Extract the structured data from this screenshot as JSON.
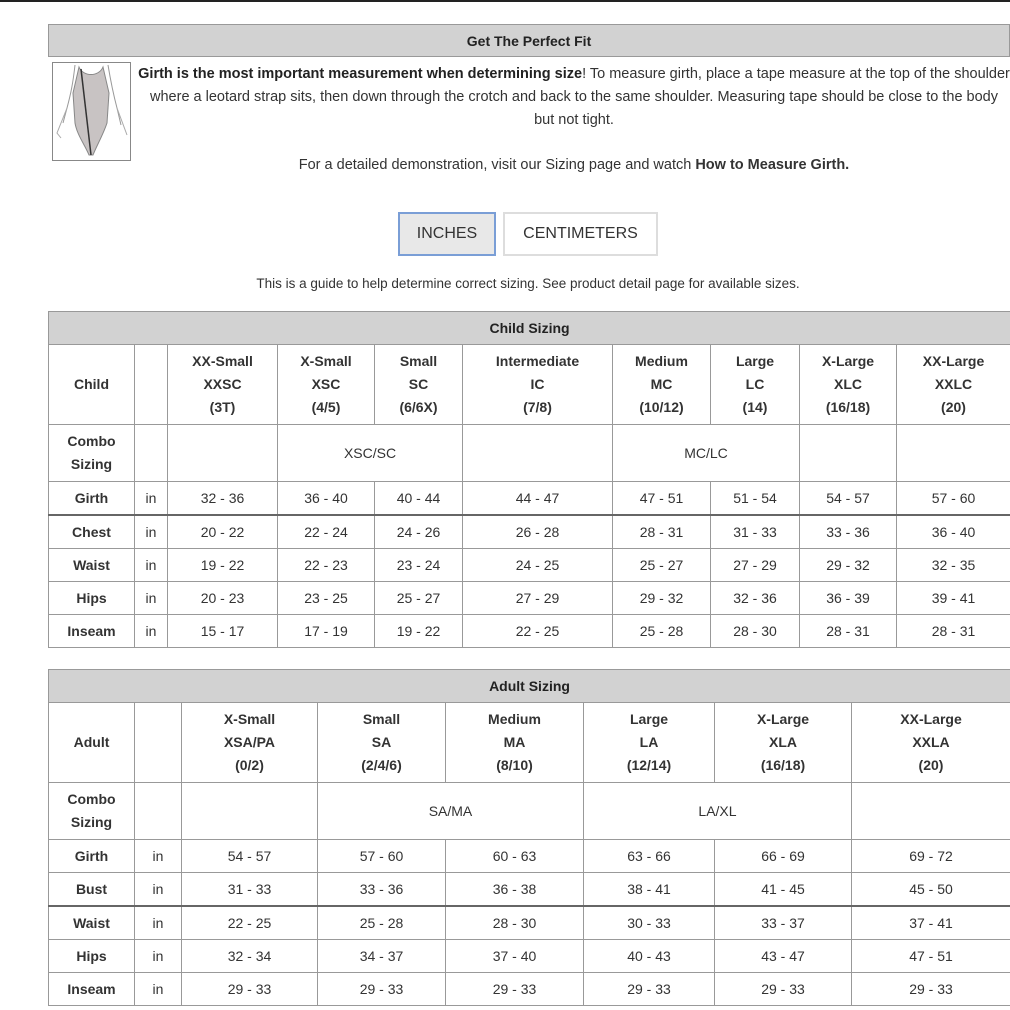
{
  "fit": {
    "title": "Get The Perfect Fit",
    "intro_bold": "Girth is the most important measurement when determining size",
    "intro_rest": "! To measure girth, place a tape measure at the top of the shoulder where a leotard strap sits, then down through the crotch and back to the same shoulder. Measuring tape should be close to the body but not tight.",
    "demo_text": "For a detailed demonstration, visit our Sizing page and watch ",
    "demo_link": "How to Measure Girth."
  },
  "units": {
    "inches": "INCHES",
    "centimeters": "CENTIMETERS",
    "selected": "INCHES"
  },
  "guide_text": "This is a guide to help determine correct sizing. See product detail page for available sizes.",
  "child": {
    "title": "Child Sizing",
    "corner": "Child",
    "columns": [
      [
        "XX-Small",
        "XXSC",
        "(3T)"
      ],
      [
        "X-Small",
        "XSC",
        "(4/5)"
      ],
      [
        "Small",
        "SC",
        "(6/6X)"
      ],
      [
        "Intermediate",
        "IC",
        "(7/8)"
      ],
      [
        "Medium",
        "MC",
        "(10/12)"
      ],
      [
        "Large",
        "LC",
        "(14)"
      ],
      [
        "X-Large",
        "XLC",
        "(16/18)"
      ],
      [
        "XX-Large",
        "XXLC",
        "(20)"
      ]
    ],
    "combo_label": [
      "Combo",
      "Sizing"
    ],
    "combo": [
      {
        "text": "",
        "span": 1
      },
      {
        "text": "XSC/SC",
        "span": 2
      },
      {
        "text": "",
        "span": 1
      },
      {
        "text": "MC/LC",
        "span": 2
      },
      {
        "text": "",
        "span": 1
      },
      {
        "text": "",
        "span": 1
      }
    ],
    "rows": [
      {
        "label": "Girth",
        "unit": "in",
        "values": [
          "32 - 36",
          "36 - 40",
          "40 - 44",
          "44 - 47",
          "47 - 51",
          "51 - 54",
          "54 - 57",
          "57 - 60"
        ]
      },
      {
        "label": "Chest",
        "unit": "in",
        "values": [
          "20 - 22",
          "22 - 24",
          "24 - 26",
          "26 - 28",
          "28 - 31",
          "31 - 33",
          "33 - 36",
          "36 - 40"
        ]
      },
      {
        "label": "Waist",
        "unit": "in",
        "values": [
          "19 - 22",
          "22 - 23",
          "23 - 24",
          "24 - 25",
          "25 - 27",
          "27 - 29",
          "29 - 32",
          "32 - 35"
        ]
      },
      {
        "label": "Hips",
        "unit": "in",
        "values": [
          "20 - 23",
          "23 - 25",
          "25 - 27",
          "27 - 29",
          "29 - 32",
          "32 - 36",
          "36 - 39",
          "39 - 41"
        ]
      },
      {
        "label": "Inseam",
        "unit": "in",
        "values": [
          "15 - 17",
          "17 - 19",
          "19 - 22",
          "22 - 25",
          "25 - 28",
          "28 - 30",
          "28 - 31",
          "28 - 31"
        ]
      }
    ]
  },
  "adult": {
    "title": "Adult Sizing",
    "corner": "Adult",
    "columns": [
      [
        "X-Small",
        "XSA/PA",
        "(0/2)"
      ],
      [
        "Small",
        "SA",
        "(2/4/6)"
      ],
      [
        "Medium",
        "MA",
        "(8/10)"
      ],
      [
        "Large",
        "LA",
        "(12/14)"
      ],
      [
        "X-Large",
        "XLA",
        "(16/18)"
      ],
      [
        "XX-Large",
        "XXLA",
        "(20)"
      ]
    ],
    "combo_label": [
      "Combo",
      "Sizing"
    ],
    "combo": [
      {
        "text": "",
        "span": 1
      },
      {
        "text": "SA/MA",
        "span": 2
      },
      {
        "text": "LA/XL",
        "span": 2
      },
      {
        "text": "",
        "span": 1
      }
    ],
    "rows": [
      {
        "label": "Girth",
        "unit": "in",
        "values": [
          "54 - 57",
          "57 - 60",
          "60 - 63",
          "63 - 66",
          "66 - 69",
          "69 - 72"
        ]
      },
      {
        "label": "Bust",
        "unit": "in",
        "values": [
          "31 - 33",
          "33 - 36",
          "36 - 38",
          "38 - 41",
          "41 - 45",
          "45 - 50"
        ]
      },
      {
        "label": "Waist",
        "unit": "in",
        "values": [
          "22 - 25",
          "25 - 28",
          "28 - 30",
          "30 - 33",
          "33 - 37",
          "37 - 41"
        ]
      },
      {
        "label": "Hips",
        "unit": "in",
        "values": [
          "32 - 34",
          "34 - 37",
          "37 - 40",
          "40 - 43",
          "43 - 47",
          "47 - 51"
        ]
      },
      {
        "label": "Inseam",
        "unit": "in",
        "values": [
          "29 - 33",
          "29 - 33",
          "29 - 33",
          "29 - 33",
          "29 - 33",
          "29 - 33"
        ]
      }
    ]
  }
}
